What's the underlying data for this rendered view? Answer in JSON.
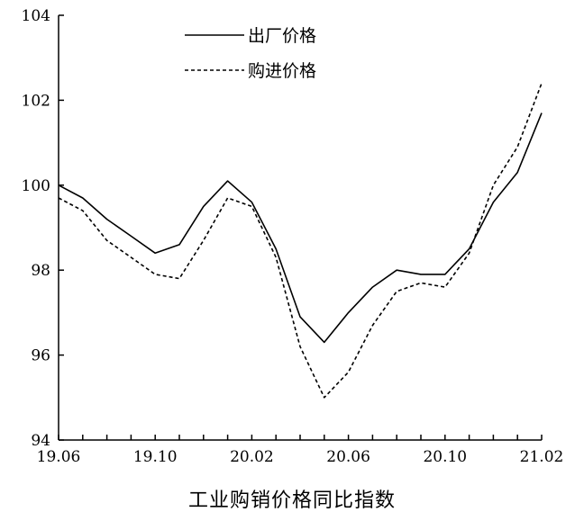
{
  "chart_data": {
    "type": "line",
    "title": "工业购销价格同比指数",
    "xlabel": "",
    "ylabel": "",
    "categories": [
      "19.06",
      "19.07",
      "19.08",
      "19.09",
      "19.10",
      "19.11",
      "19.12",
      "20.01",
      "20.02",
      "20.03",
      "20.04",
      "20.05",
      "20.06",
      "20.07",
      "20.08",
      "20.09",
      "20.10",
      "20.11",
      "20.12",
      "21.01",
      "21.02"
    ],
    "x_tick_labels": [
      "19.06",
      "19.10",
      "20.02",
      "20.06",
      "20.10",
      "21.02"
    ],
    "y_ticks": [
      "94",
      "96",
      "98",
      "100",
      "102",
      "104"
    ],
    "ylim": [
      94,
      104
    ],
    "grid": false,
    "legend_position": "top-left",
    "series": [
      {
        "name": "出厂价格",
        "style": "solid",
        "color": "#000000",
        "values": [
          100.0,
          99.7,
          99.2,
          98.8,
          98.4,
          98.6,
          99.5,
          100.1,
          99.6,
          98.5,
          96.9,
          96.3,
          97.0,
          97.6,
          98.0,
          97.9,
          97.9,
          98.5,
          99.6,
          100.3,
          101.7
        ]
      },
      {
        "name": "购进价格",
        "style": "dashed",
        "color": "#000000",
        "values": [
          99.7,
          99.4,
          98.7,
          98.3,
          97.9,
          97.8,
          98.7,
          99.7,
          99.5,
          98.3,
          96.2,
          95.0,
          95.6,
          96.7,
          97.5,
          97.7,
          97.6,
          98.4,
          100.0,
          100.9,
          102.4
        ]
      }
    ]
  }
}
